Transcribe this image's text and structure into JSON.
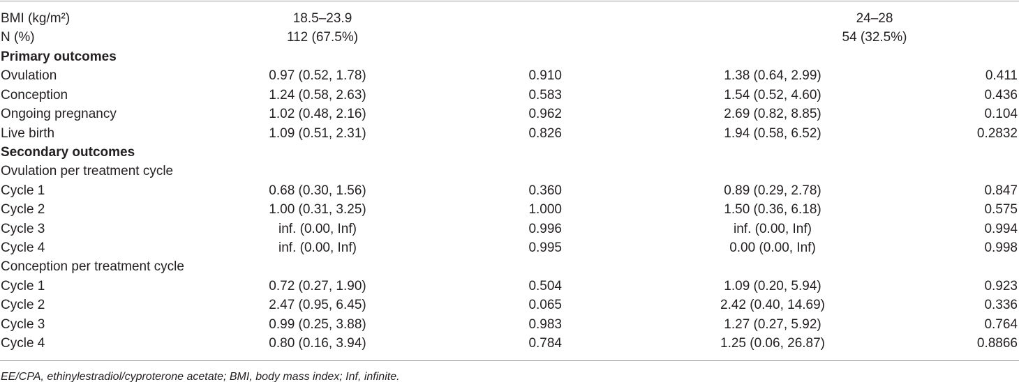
{
  "header": {
    "rows": [
      [
        "BMI (kg/m²)",
        "18.5–23.9",
        "24–28"
      ],
      [
        "N (%)",
        "112 (67.5%)",
        "54 (32.5%)"
      ]
    ]
  },
  "primary": {
    "title": "Primary outcomes",
    "rows": [
      [
        "Ovulation",
        "0.97 (0.52, 1.78)",
        "0.910",
        "1.38 (0.64, 2.99)",
        "0.411"
      ],
      [
        "Conception",
        "1.24 (0.58, 2.63)",
        "0.583",
        "1.54 (0.52, 4.60)",
        "0.436"
      ],
      [
        "Ongoing pregnancy",
        "1.02 (0.48, 2.16)",
        "0.962",
        "2.69 (0.82, 8.85)",
        "0.104"
      ],
      [
        "Live birth",
        "1.09 (0.51, 2.31)",
        "0.826",
        "1.94 (0.58, 6.52)",
        "0.2832"
      ]
    ]
  },
  "secondary": {
    "title": "Secondary outcomes",
    "groups": [
      {
        "title": "Ovulation per treatment cycle",
        "rows": [
          [
            "Cycle 1",
            "0.68 (0.30, 1.56)",
            "0.360",
            "0.89 (0.29, 2.78)",
            "0.847"
          ],
          [
            "Cycle 2",
            "1.00 (0.31, 3.25)",
            "1.000",
            "1.50 (0.36, 6.18)",
            "0.575"
          ],
          [
            "Cycle 3",
            "inf. (0.00, Inf)",
            "0.996",
            "inf. (0.00, Inf)",
            "0.994"
          ],
          [
            "Cycle 4",
            "inf. (0.00, Inf)",
            "0.995",
            "0.00 (0.00, Inf)",
            "0.998"
          ]
        ]
      },
      {
        "title": "Conception per treatment cycle",
        "rows": [
          [
            "Cycle 1",
            "0.72 (0.27, 1.90)",
            "0.504",
            "1.09 (0.20, 5.94)",
            "0.923"
          ],
          [
            "Cycle 2",
            "2.47 (0.95, 6.45)",
            "0.065",
            "2.42 (0.40, 14.69)",
            "0.336"
          ],
          [
            "Cycle 3",
            "0.99 (0.25, 3.88)",
            "0.983",
            "1.27 (0.27, 5.92)",
            "0.764"
          ],
          [
            "Cycle 4",
            "0.80 (0.16, 3.94)",
            "0.784",
            "1.25 (0.06, 26.87)",
            "0.8866"
          ]
        ]
      }
    ]
  },
  "footnote": "EE/CPA, ethinylestradiol/cyproterone acetate; BMI, body mass index; Inf, infinite."
}
